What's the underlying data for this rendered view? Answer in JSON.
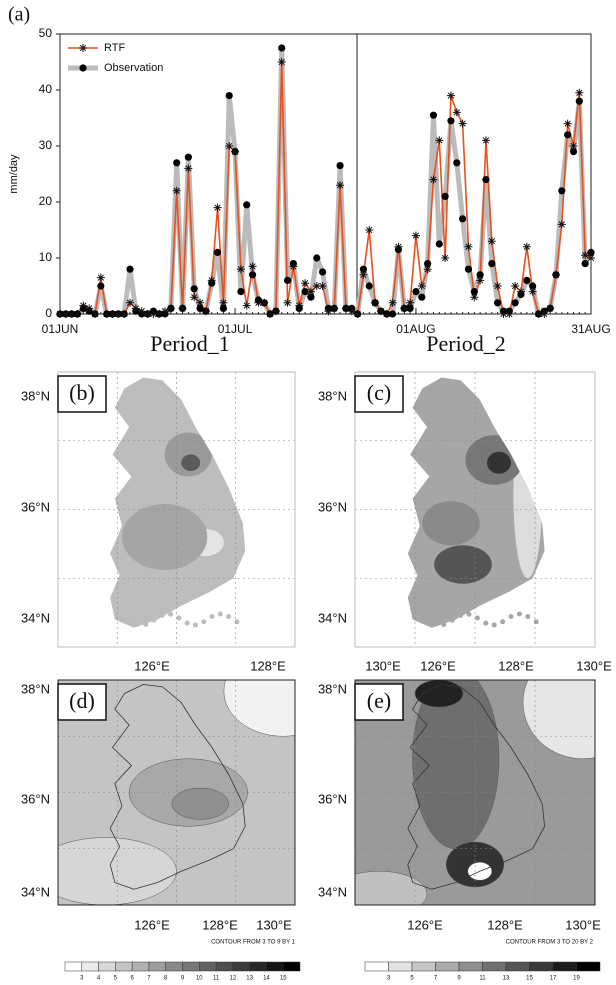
{
  "chart_data": {
    "type": "line",
    "panel_label": "(a)",
    "y_label": "mm/day",
    "categories": [
      "01JUN",
      null,
      null,
      null,
      null,
      null,
      null,
      null,
      null,
      null,
      null,
      null,
      null,
      null,
      null,
      null,
      null,
      null,
      null,
      null,
      null,
      null,
      null,
      null,
      null,
      null,
      null,
      null,
      null,
      null,
      "01JUL",
      null,
      null,
      null,
      null,
      null,
      null,
      null,
      null,
      null,
      null,
      null,
      null,
      null,
      null,
      null,
      null,
      null,
      null,
      null,
      null,
      null,
      null,
      null,
      null,
      null,
      null,
      null,
      null,
      null,
      null,
      "01AUG",
      null,
      null,
      null,
      null,
      null,
      null,
      null,
      null,
      null,
      null,
      null,
      null,
      null,
      null,
      null,
      null,
      null,
      null,
      null,
      null,
      null,
      null,
      null,
      null,
      null,
      null,
      null,
      null,
      null,
      "31AUG"
    ],
    "series": [
      {
        "name": "RTF",
        "color": "#e8501e",
        "marker": "asterisk",
        "values": [
          0,
          0,
          0,
          0,
          1.5,
          1,
          0,
          6.5,
          0,
          0,
          0,
          0,
          2,
          1,
          0.5,
          0,
          0,
          0,
          0.5,
          1,
          22,
          1,
          26,
          3,
          2,
          0.5,
          6,
          19,
          2,
          30,
          29,
          8,
          1.5,
          8.5,
          2,
          2,
          0,
          0.5,
          45,
          2,
          8.5,
          1.5,
          5.5,
          4,
          5,
          5,
          0.5,
          1,
          23,
          1,
          0.5,
          0,
          7,
          15,
          2,
          0.5,
          0,
          2,
          12,
          1,
          2,
          14,
          5,
          8,
          24,
          31,
          10,
          39,
          36,
          34,
          12,
          3,
          6,
          31,
          13,
          5,
          0,
          0,
          5,
          4,
          12,
          4,
          0,
          0,
          1,
          7,
          16,
          34,
          30,
          39.5,
          10.5,
          10
        ]
      },
      {
        "name": "Observation",
        "color": "#bbbbbb",
        "marker": "circle",
        "values": [
          0,
          0,
          0,
          0,
          1,
          0.5,
          0,
          5,
          0,
          0,
          0,
          0,
          8,
          0.5,
          0,
          0,
          0.5,
          0,
          0,
          1,
          27,
          1,
          28,
          4.5,
          1,
          0.5,
          5.5,
          11,
          1,
          39,
          29,
          4,
          19.5,
          7,
          2.5,
          2,
          0,
          0.5,
          47.5,
          6,
          9,
          1,
          4,
          3,
          10,
          7.5,
          1,
          1,
          26.5,
          1,
          1,
          0,
          8,
          5,
          2,
          0.5,
          0,
          0,
          11.5,
          1,
          1,
          4,
          3,
          9,
          35.5,
          12.5,
          21,
          34.5,
          27,
          17,
          8,
          4,
          7,
          24,
          9,
          2,
          0.5,
          0.5,
          2,
          3.5,
          6,
          5,
          0,
          0.5,
          1,
          7,
          22,
          32,
          29,
          38,
          9,
          11
        ]
      }
    ],
    "ylim": [
      0,
      50
    ],
    "yticks": [
      0,
      10,
      20,
      30,
      40,
      50
    ],
    "legend": "upper left"
  },
  "maps": {
    "column_titles": [
      "Period_1",
      "Period_2"
    ],
    "panels": [
      {
        "label": "(b)",
        "lat_labels": [
          "38°N",
          "36°N",
          "34°N"
        ],
        "lon_labels": [
          "126°E",
          "128°E",
          "130°E"
        ]
      },
      {
        "label": "(c)",
        "lat_labels": [
          "38°N",
          "36°N",
          "34°N"
        ],
        "lon_labels": [
          "126°E",
          "128°E",
          "130°E"
        ]
      },
      {
        "label": "(d)",
        "lat_labels": [
          "38°N",
          "36°N",
          "34°N"
        ],
        "lon_labels": [
          "126°E",
          "128°E",
          "130°E"
        ]
      },
      {
        "label": "(e)",
        "lat_labels": [
          "38°N",
          "36°N",
          "34°N"
        ],
        "lon_labels": [
          "126°E",
          "128°E",
          "130°E"
        ]
      }
    ],
    "contour_notes": [
      "CONTOUR FROM 3 TO 9 BY 1",
      "CONTOUR FROM 3 TO 20 BY 2"
    ],
    "colorbars": [
      {
        "ticks": [
          3,
          4,
          5,
          6,
          7,
          8,
          9,
          10,
          11,
          12,
          13,
          14,
          15
        ]
      },
      {
        "ticks": [
          3,
          5,
          7,
          9,
          11,
          13,
          15,
          17,
          19
        ]
      }
    ]
  }
}
